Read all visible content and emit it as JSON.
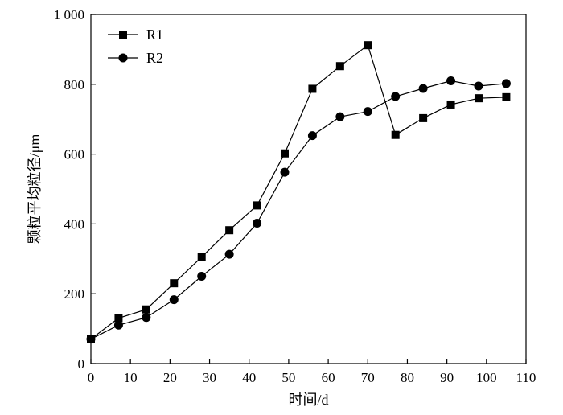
{
  "chart_data": {
    "type": "line",
    "title": "",
    "xlabel": "时间/d",
    "ylabel": "颗粒平均粒径/μm",
    "xlim": [
      0,
      110
    ],
    "ylim": [
      0,
      1000
    ],
    "xticks": [
      0,
      10,
      20,
      30,
      40,
      50,
      60,
      70,
      80,
      90,
      100,
      110
    ],
    "yticks": [
      0,
      200,
      400,
      600,
      800,
      1000
    ],
    "xtick_labels": [
      "0",
      "10",
      "20",
      "30",
      "40",
      "50",
      "60",
      "70",
      "80",
      "90",
      "100",
      "110"
    ],
    "ytick_labels": [
      "0",
      "200",
      "400",
      "600",
      "800",
      "1 000"
    ],
    "grid": false,
    "legend_position": "top-left",
    "series": [
      {
        "name": "R1",
        "marker": "square",
        "color": "#000000",
        "x": [
          0,
          7,
          14,
          21,
          28,
          35,
          42,
          49,
          56,
          63,
          70,
          77,
          84,
          91,
          98,
          105
        ],
        "y": [
          70,
          130,
          155,
          230,
          305,
          382,
          453,
          602,
          787,
          852,
          912,
          655,
          703,
          742,
          760,
          763
        ]
      },
      {
        "name": "R2",
        "marker": "circle",
        "color": "#000000",
        "x": [
          0,
          7,
          14,
          21,
          28,
          35,
          42,
          49,
          56,
          63,
          70,
          77,
          84,
          91,
          98,
          105
        ],
        "y": [
          70,
          110,
          132,
          183,
          250,
          313,
          402,
          548,
          653,
          707,
          722,
          765,
          788,
          810,
          795,
          802
        ]
      }
    ]
  }
}
